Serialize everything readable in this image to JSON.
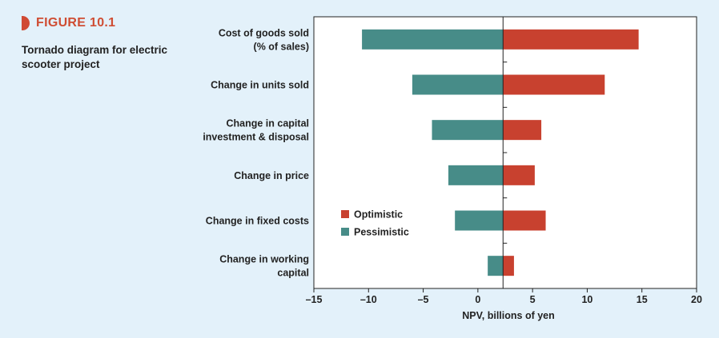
{
  "figure": {
    "label": "FIGURE 10.1",
    "caption": "Tornado diagram for electric scooter project"
  },
  "colors": {
    "optimistic": "#c8412f",
    "pessimistic": "#478c88",
    "accent": "#cf4d33"
  },
  "chart_data": {
    "type": "bar",
    "orientation": "horizontal",
    "categories": [
      [
        "Cost of goods sold",
        "(% of sales)"
      ],
      [
        "Change in units sold"
      ],
      [
        "Change in capital",
        "investment & disposal"
      ],
      [
        "Change in price"
      ],
      [
        "Change in fixed costs"
      ],
      [
        "Change in working",
        "capital"
      ]
    ],
    "baseline": 2.3,
    "series": [
      {
        "name": "Optimistic",
        "color": "#c8412f",
        "values": [
          14.7,
          11.6,
          5.8,
          5.2,
          6.2,
          3.3
        ]
      },
      {
        "name": "Pessimistic",
        "color": "#478c88",
        "values": [
          -10.6,
          -6.0,
          -4.2,
          -2.7,
          -2.1,
          0.9
        ]
      }
    ],
    "xlim": [
      -15,
      20
    ],
    "xticks": [
      -15,
      -10,
      -5,
      0,
      5,
      10,
      15,
      20
    ],
    "xlabel": "NPV, billions of yen",
    "legend_position": "inside-lower-left"
  }
}
